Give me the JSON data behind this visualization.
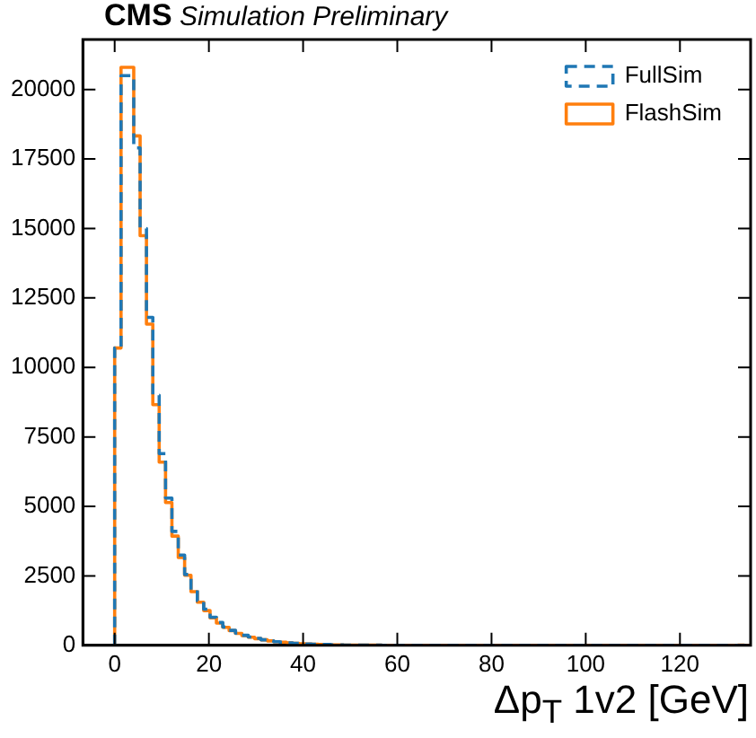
{
  "chart_data": {
    "type": "histogram",
    "title": "CMS",
    "subtitle": "Simulation Preliminary",
    "xlabel": "Δp$_{T}$ 1v2 [GeV]",
    "bins": [
      0,
      1.35,
      2.7,
      4.05,
      5.4,
      6.75,
      8.1,
      9.45,
      10.8,
      12.15,
      13.5,
      14.85,
      16.2,
      17.55,
      18.9,
      20.25,
      21.6,
      22.95,
      24.3,
      25.65,
      27,
      28.35,
      29.7,
      31.05,
      32.4,
      33.75,
      35.1,
      36.45,
      37.8,
      39.15,
      40.5,
      41.85,
      43.2,
      44.55,
      45.9,
      47.25,
      48.6,
      49.95,
      51.3,
      52.65,
      54,
      55.35,
      56.7,
      58.05,
      59.4,
      60.75,
      62.1,
      63.45,
      64.8,
      66.15,
      67.5,
      68.85,
      70.2,
      71.55,
      72.9,
      74.25,
      75.6,
      76.95,
      78.3,
      79.65,
      81,
      82.35,
      83.7,
      85.05,
      86.4,
      87.75,
      89.1,
      90.45,
      91.8,
      93.15,
      94.5,
      95.85,
      97.2,
      98.55,
      99.9,
      101.25,
      102.6,
      103.95,
      105.3,
      106.65,
      108,
      109.35,
      110.7,
      112.05,
      113.4,
      114.75,
      116.1,
      117.45,
      118.8,
      120.15,
      121.5,
      122.85,
      124.2,
      125.55,
      126.9,
      128.25,
      129.6,
      130.95,
      132.3,
      133.65,
      135
    ],
    "series": [
      {
        "name": "FullSim",
        "color": "#1f77b4",
        "line_style": "dashed",
        "values": [
          10700,
          20500,
          20500,
          17900,
          15000,
          11800,
          9000,
          6900,
          5300,
          4100,
          3250,
          2550,
          1990,
          1600,
          1300,
          1010,
          820,
          660,
          540,
          440,
          360,
          300,
          250,
          200,
          160,
          130,
          110,
          90,
          70,
          60,
          50,
          40,
          30,
          30,
          20,
          20,
          10,
          10,
          10,
          10,
          10,
          10,
          0,
          0,
          0,
          0,
          0,
          0,
          0,
          0,
          0,
          0,
          0,
          0,
          0,
          0,
          0,
          0,
          0,
          0,
          0,
          0,
          0,
          0,
          0,
          0,
          0,
          0,
          0,
          0,
          0,
          0,
          0,
          0,
          0,
          0,
          0,
          0,
          0,
          0,
          0,
          0,
          0,
          0,
          0,
          0,
          0,
          0,
          0,
          0,
          0,
          0,
          0,
          0,
          0,
          0,
          0,
          0,
          0,
          0
        ]
      },
      {
        "name": "FlashSim",
        "color": "#ff7f0e",
        "line_style": "solid",
        "values": [
          10700,
          20800,
          20800,
          18330,
          14740,
          11560,
          8660,
          6590,
          5140,
          3930,
          3160,
          2520,
          1930,
          1550,
          1250,
          990,
          800,
          650,
          530,
          430,
          350,
          290,
          240,
          200,
          160,
          130,
          110,
          90,
          70,
          60,
          50,
          40,
          30,
          30,
          20,
          20,
          10,
          10,
          10,
          10,
          10,
          10,
          0,
          0,
          0,
          0,
          0,
          0,
          0,
          0,
          0,
          0,
          0,
          0,
          0,
          0,
          0,
          0,
          0,
          0,
          0,
          0,
          0,
          0,
          0,
          0,
          0,
          0,
          0,
          0,
          0,
          0,
          0,
          0,
          0,
          0,
          0,
          0,
          0,
          0,
          0,
          0,
          0,
          0,
          0,
          0,
          0,
          0,
          0,
          0,
          0,
          0,
          0,
          0,
          0,
          0,
          0,
          0,
          10,
          0
        ]
      }
    ],
    "xlim": [
      -6.75,
      135
    ],
    "xticks": [
      0,
      20,
      40,
      60,
      80,
      100,
      120
    ],
    "ylim": [
      0,
      21800
    ],
    "yticks": [
      0,
      2500,
      5000,
      7500,
      10000,
      12500,
      15000,
      17500,
      20000
    ],
    "grid": false,
    "legend": "top right"
  }
}
